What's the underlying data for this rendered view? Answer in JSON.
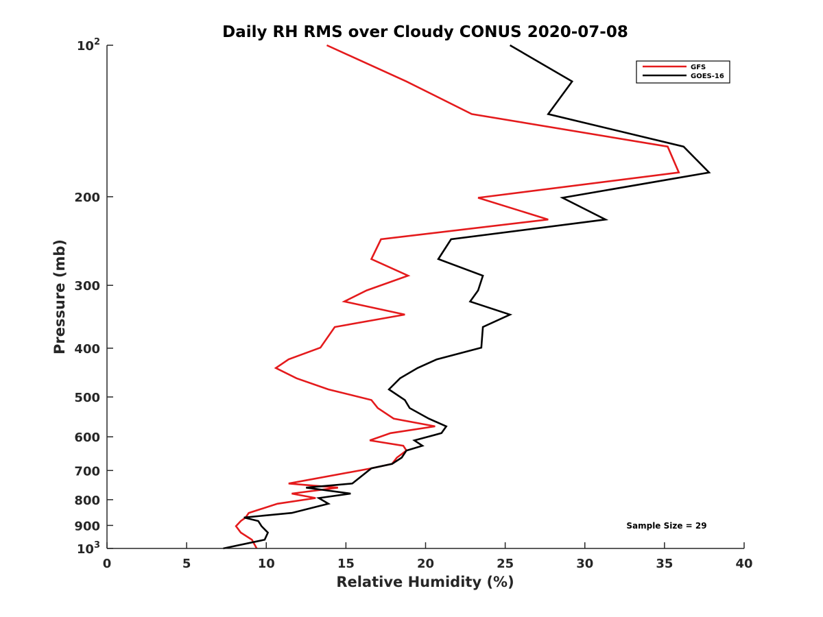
{
  "chart_data": {
    "type": "line",
    "title": "Daily RH RMS over Cloudy CONUS 2020-07-08",
    "xlabel": "Relative Humidity (%)",
    "ylabel": "Pressure (mb)",
    "xlim": [
      0,
      40
    ],
    "ylim": [
      100,
      1000
    ],
    "yscale": "log",
    "yreversed": true,
    "grid": false,
    "x_ticks": [
      0,
      5,
      10,
      15,
      20,
      25,
      30,
      35,
      40
    ],
    "x_tick_labels": [
      "0",
      "5",
      "10",
      "15",
      "20",
      "25",
      "30",
      "35",
      "40"
    ],
    "y_ticks": [
      {
        "value": 100,
        "label": "10",
        "sup": "2"
      },
      {
        "value": 200,
        "label": "200",
        "sup": ""
      },
      {
        "value": 300,
        "label": "300",
        "sup": ""
      },
      {
        "value": 400,
        "label": "400",
        "sup": ""
      },
      {
        "value": 500,
        "label": "500",
        "sup": ""
      },
      {
        "value": 600,
        "label": "600",
        "sup": ""
      },
      {
        "value": 700,
        "label": "700",
        "sup": ""
      },
      {
        "value": 800,
        "label": "800",
        "sup": ""
      },
      {
        "value": 900,
        "label": "900",
        "sup": ""
      },
      {
        "value": 1000,
        "label": "10",
        "sup": "3"
      }
    ],
    "legend_position": "top-right",
    "series": [
      {
        "name": "GFS",
        "color": "#e41a1c",
        "points": [
          [
            13.8,
            100
          ],
          [
            18.8,
            118
          ],
          [
            22.9,
            137
          ],
          [
            35.2,
            159
          ],
          [
            35.9,
            179
          ],
          [
            23.3,
            201
          ],
          [
            27.7,
            222
          ],
          [
            17.2,
            243
          ],
          [
            16.6,
            266
          ],
          [
            18.9,
            287
          ],
          [
            16.3,
            307
          ],
          [
            14.9,
            323
          ],
          [
            18.7,
            343
          ],
          [
            14.3,
            363
          ],
          [
            13.4,
            399
          ],
          [
            11.4,
            421
          ],
          [
            10.6,
            438
          ],
          [
            11.9,
            459
          ],
          [
            13.9,
            483
          ],
          [
            16.6,
            507
          ],
          [
            17.0,
            526
          ],
          [
            18.0,
            552
          ],
          [
            20.6,
            572
          ],
          [
            17.8,
            590
          ],
          [
            16.5,
            610
          ],
          [
            18.6,
            625
          ],
          [
            18.8,
            639
          ],
          [
            18.2,
            660
          ],
          [
            17.9,
            679
          ],
          [
            16.6,
            693
          ],
          [
            11.4,
            743
          ],
          [
            14.5,
            757
          ],
          [
            11.6,
            778
          ],
          [
            13.1,
            794
          ],
          [
            10.7,
            815
          ],
          [
            8.9,
            850
          ],
          [
            8.7,
            868
          ],
          [
            8.4,
            882
          ],
          [
            8.1,
            903
          ],
          [
            8.4,
            930
          ],
          [
            9.1,
            961
          ],
          [
            9.4,
            1000
          ]
        ]
      },
      {
        "name": "GOES-16",
        "color": "#000000",
        "points": [
          [
            25.3,
            100
          ],
          [
            29.2,
            118
          ],
          [
            27.7,
            137
          ],
          [
            36.2,
            159
          ],
          [
            37.8,
            179
          ],
          [
            28.6,
            201
          ],
          [
            31.3,
            222
          ],
          [
            21.6,
            243
          ],
          [
            20.8,
            266
          ],
          [
            23.6,
            287
          ],
          [
            23.3,
            307
          ],
          [
            22.8,
            323
          ],
          [
            25.3,
            343
          ],
          [
            23.6,
            363
          ],
          [
            23.5,
            399
          ],
          [
            20.7,
            421
          ],
          [
            19.5,
            438
          ],
          [
            18.4,
            459
          ],
          [
            17.7,
            483
          ],
          [
            18.7,
            507
          ],
          [
            19.0,
            526
          ],
          [
            20.2,
            552
          ],
          [
            21.3,
            572
          ],
          [
            21.0,
            590
          ],
          [
            19.3,
            610
          ],
          [
            19.8,
            625
          ],
          [
            18.8,
            639
          ],
          [
            18.5,
            660
          ],
          [
            17.9,
            679
          ],
          [
            16.6,
            693
          ],
          [
            15.4,
            743
          ],
          [
            12.5,
            757
          ],
          [
            15.3,
            778
          ],
          [
            13.3,
            794
          ],
          [
            13.9,
            815
          ],
          [
            11.6,
            850
          ],
          [
            8.6,
            868
          ],
          [
            9.5,
            882
          ],
          [
            9.7,
            903
          ],
          [
            10.1,
            930
          ],
          [
            9.9,
            961
          ],
          [
            7.3,
            1000
          ]
        ]
      }
    ],
    "annotations": [
      {
        "text": "Sample Size = 29"
      }
    ]
  }
}
